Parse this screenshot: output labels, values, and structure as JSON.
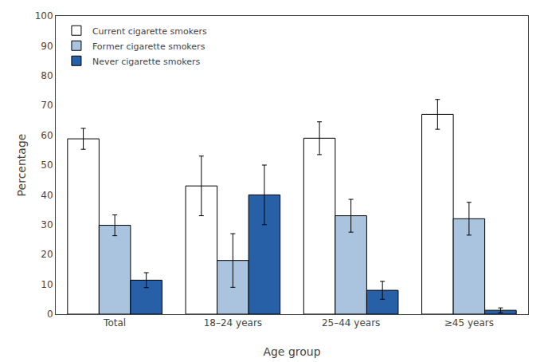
{
  "chart_data": {
    "type": "bar",
    "categories": [
      "Total",
      "18–24 years",
      "25–44 years",
      "≥45 years"
    ],
    "series": [
      {
        "name": "Current cigarette smokers",
        "color": "#ffffff",
        "values": [
          58.8,
          43.0,
          59.0,
          67.0
        ],
        "errors": [
          3.5,
          10.0,
          5.5,
          5.0
        ]
      },
      {
        "name": "Former cigarette smokers",
        "color": "#aac4e0",
        "values": [
          29.8,
          18.0,
          33.0,
          32.0
        ],
        "errors": [
          3.5,
          9.0,
          5.5,
          5.5
        ]
      },
      {
        "name": "Never cigarette smokers",
        "color": "#2860a8",
        "values": [
          11.4,
          40.0,
          8.0,
          1.3
        ],
        "errors": [
          2.5,
          10.0,
          3.0,
          0.8
        ]
      }
    ],
    "xlabel": "Age group",
    "ylabel": "Percentage",
    "ylim": [
      0,
      100
    ],
    "yticks": [
      0,
      10,
      20,
      30,
      40,
      50,
      60,
      70,
      80,
      90,
      100
    ],
    "grid": false,
    "legend": "upper left"
  }
}
